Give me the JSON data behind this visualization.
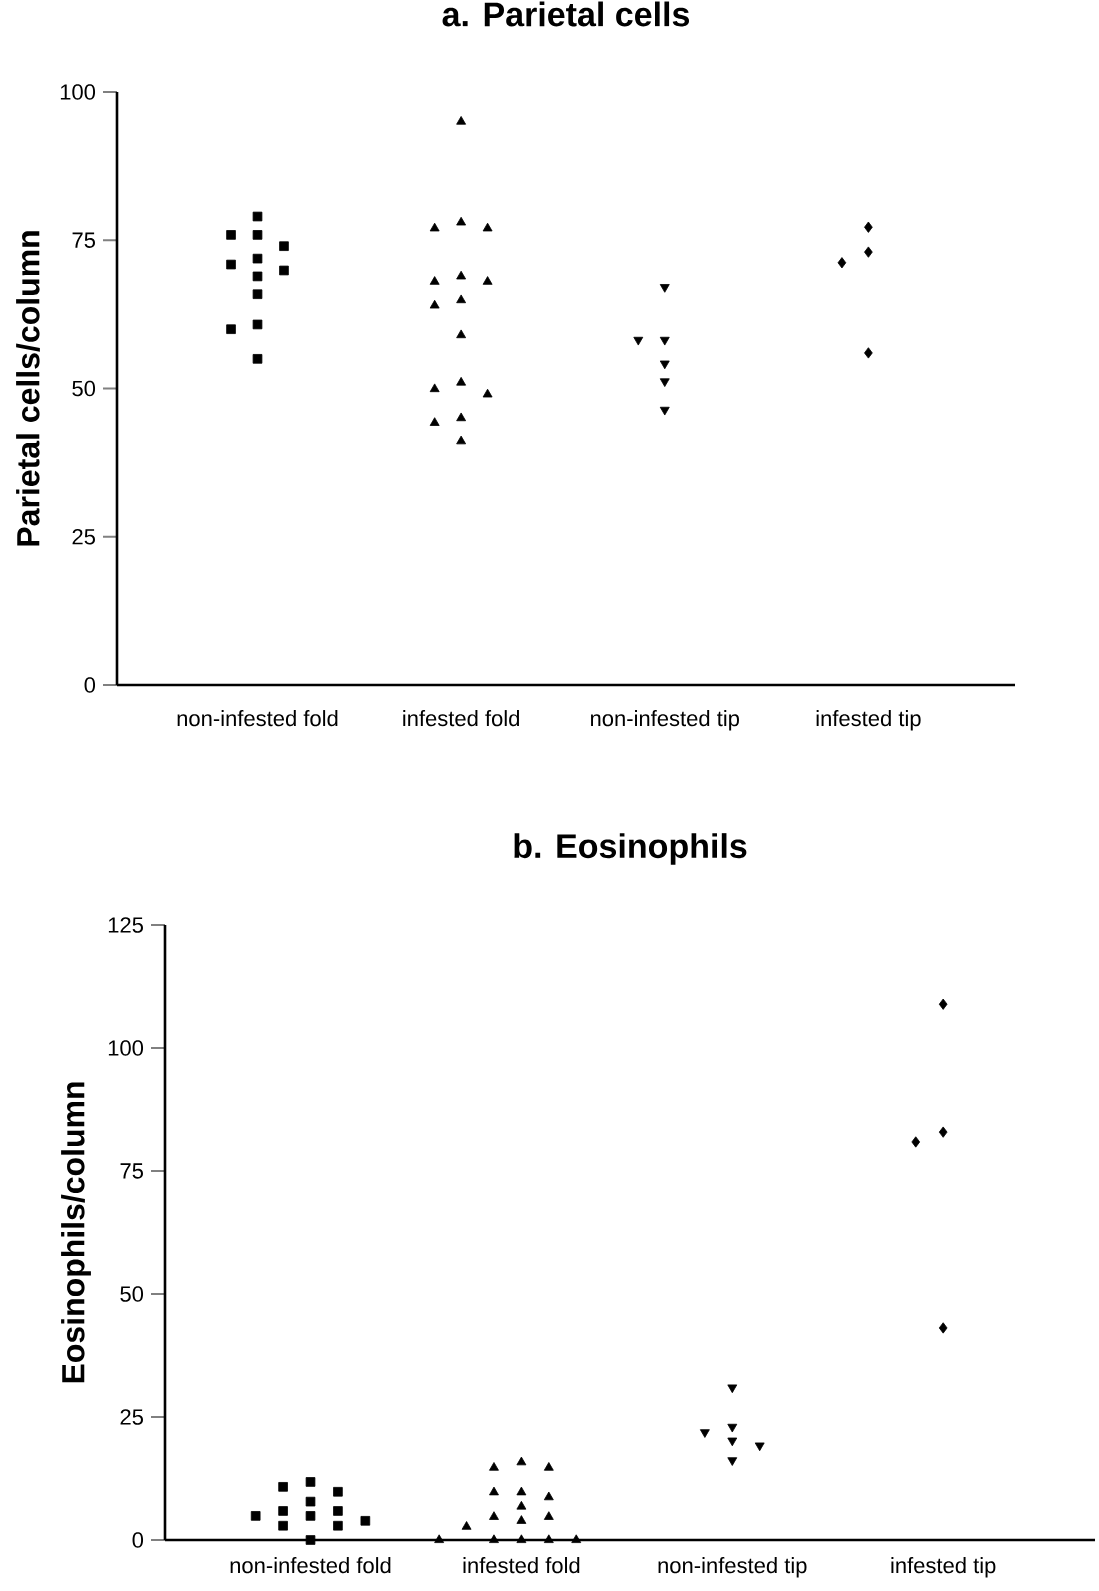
{
  "chart_data": [
    {
      "type": "scatter",
      "title": "a. Parietal cells",
      "ylabel": "Parietal cells/column",
      "categories": [
        "non-infested fold",
        "infested fold",
        "non-infested tip",
        "infested tip"
      ],
      "ylim": [
        0,
        100
      ],
      "yticks": [
        0,
        25,
        50,
        75,
        100
      ],
      "grid": false,
      "series": [
        {
          "color": "#000000",
          "marker": "square",
          "x": [
            "non-infested fold",
            "non-infested fold",
            "non-infested fold",
            "non-infested fold",
            "non-infested fold",
            "non-infested fold",
            "non-infested fold",
            "non-infested fold",
            "non-infested fold",
            "non-infested fold",
            "non-infested fold",
            "non-infested fold"
          ],
          "values": [
            79.0,
            75.9,
            75.9,
            74.0,
            71.9,
            70.9,
            69.9,
            68.9,
            65.9,
            60.8,
            60.0,
            55.0
          ]
        },
        {
          "color": "#000000",
          "marker": "triangle",
          "x": [
            "infested fold",
            "infested fold",
            "infested fold",
            "infested fold",
            "infested fold",
            "infested fold",
            "infested fold",
            "infested fold",
            "infested fold",
            "infested fold",
            "infested fold",
            "infested fold",
            "infested fold",
            "infested fold",
            "infested fold",
            "infested fold"
          ],
          "values": [
            95.0,
            78.0,
            77.0,
            77.0,
            68.9,
            68.0,
            68.0,
            64.9,
            64.0,
            59.0,
            51.0,
            49.9,
            49.0,
            45.0,
            44.2,
            41.1
          ]
        },
        {
          "color": "#000000",
          "marker": "triangle_down",
          "x": [
            "non-infested tip",
            "non-infested tip",
            "non-infested tip",
            "non-infested tip",
            "non-infested tip",
            "non-infested tip"
          ],
          "values": [
            67.1,
            58.2,
            58.2,
            54.2,
            51.2,
            46.4
          ]
        },
        {
          "color": "#000000",
          "marker": "diamond",
          "x": [
            "infested tip",
            "infested tip",
            "infested tip",
            "infested tip"
          ],
          "values": [
            77.2,
            73.0,
            71.2,
            56.0
          ]
        }
      ]
    },
    {
      "type": "scatter",
      "title": "b. Eosinophils",
      "ylabel": "Eosinophils/column",
      "categories": [
        "non-infested fold",
        "infested fold",
        "non-infested tip",
        "infested tip"
      ],
      "ylim": [
        0,
        125
      ],
      "yticks": [
        0,
        25,
        50,
        75,
        100,
        125
      ],
      "grid": false,
      "series": [
        {
          "color": "#000000",
          "marker": "square",
          "x": [
            "non-infested fold",
            "non-infested fold",
            "non-infested fold",
            "non-infested fold",
            "non-infested fold",
            "non-infested fold",
            "non-infested fold",
            "non-infested fold",
            "non-infested fold",
            "non-infested fold",
            "non-infested fold",
            "non-infested fold"
          ],
          "values": [
            11.8,
            10.8,
            9.8,
            7.8,
            5.9,
            5.9,
            4.9,
            4.9,
            3.9,
            2.9,
            2.9,
            0
          ]
        },
        {
          "color": "#000000",
          "marker": "triangle",
          "x": [
            "infested fold",
            "infested fold",
            "infested fold",
            "infested fold",
            "infested fold",
            "infested fold",
            "infested fold",
            "infested fold",
            "infested fold",
            "infested fold",
            "infested fold",
            "infested fold",
            "infested fold",
            "infested fold",
            "infested fold",
            "infested fold"
          ],
          "values": [
            15.8,
            14.7,
            14.7,
            9.7,
            9.7,
            8.7,
            6.8,
            4.7,
            4.7,
            3.9,
            2.7,
            0,
            0,
            0,
            0,
            0
          ]
        },
        {
          "color": "#000000",
          "marker": "triangle_down",
          "x": [
            "non-infested tip",
            "non-infested tip",
            "non-infested tip",
            "non-infested tip",
            "non-infested tip",
            "non-infested tip"
          ],
          "values": [
            31.0,
            23.0,
            21.9,
            20.2,
            19.2,
            16.2
          ]
        },
        {
          "color": "#000000",
          "marker": "diamond",
          "x": [
            "infested tip",
            "infested tip",
            "infested tip",
            "infested tip"
          ],
          "values": [
            108.9,
            82.9,
            80.9,
            43.1
          ]
        }
      ]
    }
  ]
}
